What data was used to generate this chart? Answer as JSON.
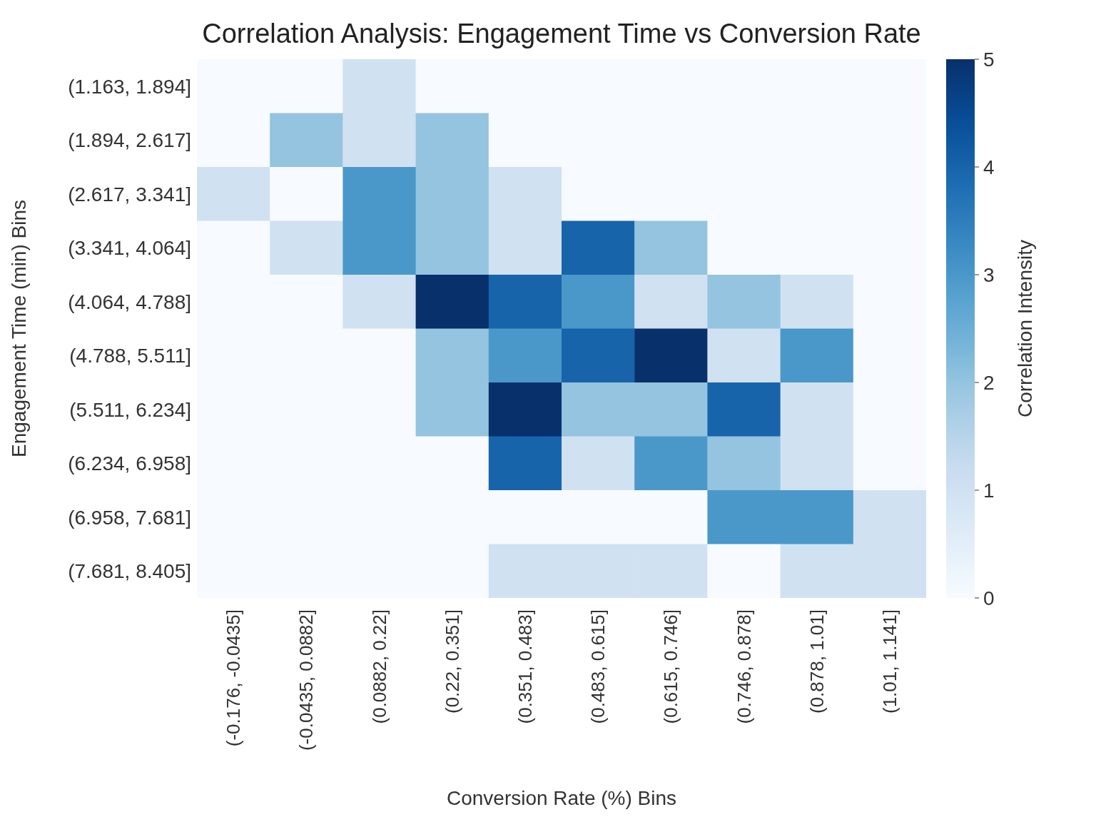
{
  "chart_data": {
    "type": "heatmap",
    "title": "Correlation Analysis: Engagement Time vs Conversion Rate",
    "xlabel": "Conversion Rate (%) Bins",
    "ylabel": "Engagement Time (min) Bins",
    "clabel": "Correlation Intensity",
    "categories": [
      "(-0.176, -0.0435]",
      "(-0.0435, 0.0882]",
      "(0.0882, 0.22]",
      "(0.22, 0.351]",
      "(0.351, 0.483]",
      "(0.483, 0.615]",
      "(0.615, 0.746]",
      "(0.746, 0.878]",
      "(0.878, 1.01]",
      "(1.01, 1.141]"
    ],
    "y_categories": [
      "(1.163, 1.894]",
      "(1.894, 2.617]",
      "(2.617, 3.341]",
      "(3.341, 4.064]",
      "(4.064, 4.788]",
      "(4.788, 5.511]",
      "(5.511, 6.234]",
      "(6.234, 6.958]",
      "(6.958, 7.681]",
      "(7.681, 8.405]"
    ],
    "cells": [
      [
        0,
        0,
        1,
        0,
        0,
        0,
        0,
        0,
        0,
        0
      ],
      [
        0,
        2,
        1,
        2,
        0,
        0,
        0,
        0,
        0,
        0
      ],
      [
        1,
        0,
        3,
        2,
        1,
        0,
        0,
        0,
        0,
        0
      ],
      [
        0,
        1,
        3,
        2,
        1,
        4,
        2,
        0,
        0,
        0
      ],
      [
        0,
        0,
        1,
        5,
        4,
        3,
        1,
        2,
        1,
        0
      ],
      [
        0,
        0,
        0,
        2,
        3,
        4,
        5,
        1,
        3,
        0
      ],
      [
        0,
        0,
        0,
        2,
        5,
        2,
        2,
        4,
        1,
        0
      ],
      [
        0,
        0,
        0,
        0,
        4,
        1,
        3,
        2,
        1,
        0
      ],
      [
        0,
        0,
        0,
        0,
        0,
        0,
        0,
        3,
        3,
        1
      ],
      [
        0,
        0,
        0,
        0,
        1,
        1,
        1,
        0,
        1,
        1
      ]
    ],
    "clim": [
      0,
      5
    ],
    "cticks": [
      0,
      1,
      2,
      3,
      4,
      5
    ]
  }
}
